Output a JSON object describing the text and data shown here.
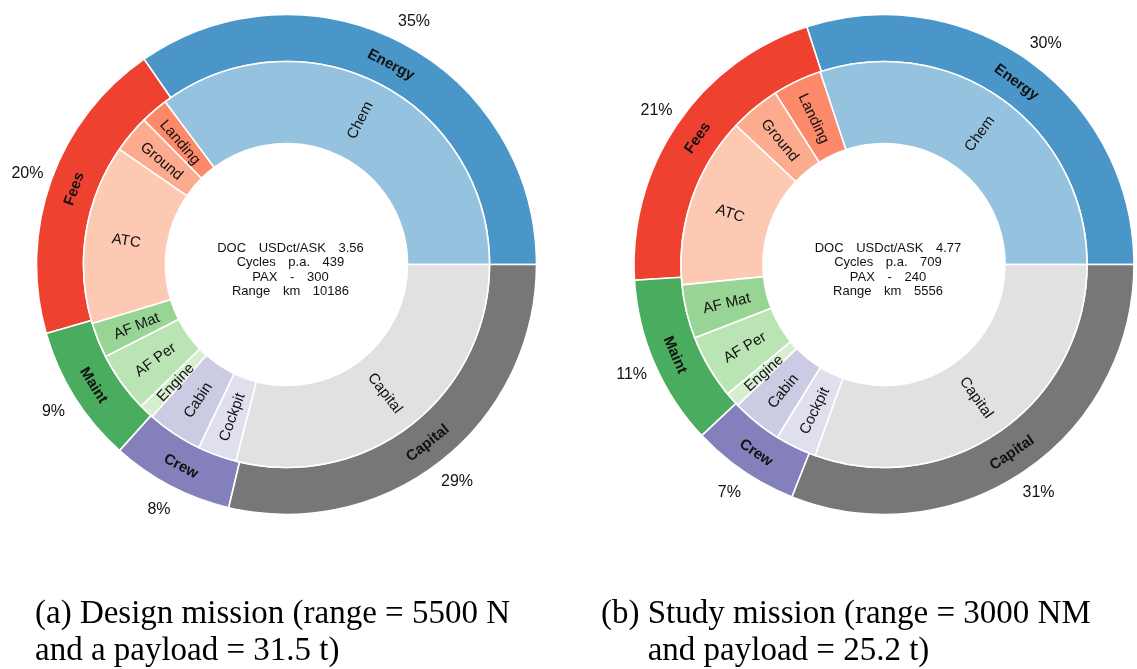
{
  "chart_data": [
    {
      "type": "donut",
      "title": "(a) Design mission (range = 5500 N and a payload = 31.5 t)",
      "categories": [
        "Energy",
        "Fees",
        "Maint",
        "Crew",
        "Capital"
      ],
      "values": [
        35,
        20,
        9,
        8,
        29
      ],
      "colors": [
        "#4a96c9",
        "#ef4130",
        "#4aac5e",
        "#8480bb",
        "#777777"
      ],
      "value_labels": [
        "35%",
        "20%",
        "9%",
        "8%",
        "29%"
      ],
      "annotations": [
        "DOC USDct/ASK 3.56",
        "Cycles p.a. 439",
        "PAX - 300",
        "Range km 10186"
      ]
    },
    {
      "type": "donut",
      "categories": [
        "Chem",
        "Landing",
        "Ground",
        "ATC",
        "AF Mat",
        "AF Per",
        "Engine",
        "Cabin",
        "Cockpit",
        "Capital"
      ],
      "values": [
        35.2,
        2.2,
        3.0,
        14.3,
        2.8,
        4.8,
        1.2,
        4.4,
        3.1,
        29.0
      ],
      "colors": [
        "#95c3df",
        "#fc8a6a",
        "#fcab8e",
        "#fdc9b3",
        "#98d594",
        "#bae4b3",
        "#d7efd1",
        "#cbcbe3",
        "#dfdfee",
        "#e1e1e1"
      ]
    },
    {
      "type": "donut",
      "title": "(b) Study mission (range = 3000 NM and payload = 25.2 t)",
      "categories": [
        "Energy",
        "Fees",
        "Maint",
        "Crew",
        "Capital"
      ],
      "values": [
        30,
        21,
        11,
        7,
        31
      ],
      "colors": [
        "#4a96c9",
        "#ef4130",
        "#4aac5e",
        "#8480bb",
        "#777777"
      ],
      "value_labels": [
        "30%",
        "21%",
        "11%",
        "7%",
        "31%"
      ],
      "annotations": [
        "DOC USDct/ASK 4.77",
        "Cycles p.a. 709",
        "PAX - 240",
        "Range km 5556"
      ]
    },
    {
      "type": "donut",
      "categories": [
        "Chem",
        "Landing",
        "Ground",
        "ATC",
        "AF Mat",
        "AF Per",
        "Engine",
        "Cabin",
        "Cockpit",
        "Capital"
      ],
      "values": [
        30.1,
        3.9,
        4.0,
        13.6,
        4.3,
        5.1,
        1.2,
        4.0,
        3.3,
        30.5
      ],
      "colors": [
        "#95c3df",
        "#fc8a6a",
        "#fcab8e",
        "#fdc9b3",
        "#98d594",
        "#bae4b3",
        "#d7efd1",
        "#cbcbe3",
        "#dfdfee",
        "#e1e1e1"
      ]
    }
  ]
}
